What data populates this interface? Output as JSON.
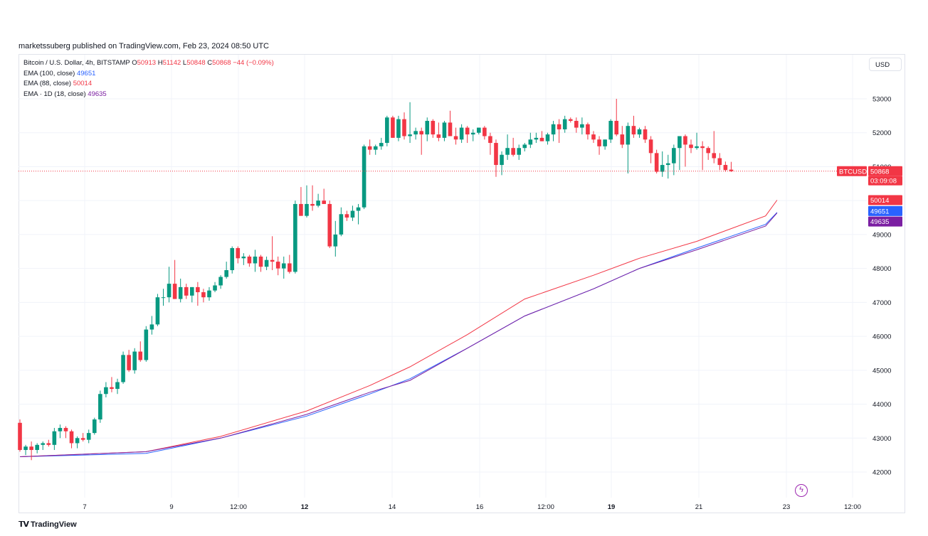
{
  "header": {
    "publisher_line": "marketssuberg published on TradingView.com, Feb 23, 2024 08:50 UTC"
  },
  "legend": {
    "symbol": "Bitcoin / U.S. Dollar, 4h, BITSTAMP",
    "o_label": "O",
    "o_value": "50913",
    "h_label": "H",
    "h_value": "51142",
    "l_label": "L",
    "l_value": "50848",
    "c_label": "C",
    "c_value": "50868",
    "change": "−44 (−0.09%)",
    "ema100_label": "EMA (100, close)",
    "ema100_value": "49651",
    "ema88_label": "EMA (88, close)",
    "ema88_value": "50014",
    "ema1d_label": "EMA · 1D (18, close)",
    "ema1d_value": "49635"
  },
  "currency_button": "USD",
  "price_tags": {
    "symbol_tag": "BTCUSD",
    "last_price": "50868",
    "countdown": "03:09:08",
    "ema88": "50014",
    "ema100": "49651",
    "ema1d": "49635"
  },
  "footer": {
    "brand": "TradingView"
  },
  "colors": {
    "up": "#089981",
    "down": "#f23645",
    "ema100": "#2962ff",
    "ema88": "#f23645",
    "ema1d": "#7b1fa2"
  },
  "chart_data": {
    "type": "candlestick",
    "interval": "4h",
    "y_ticks": [
      42000,
      43000,
      44000,
      45000,
      46000,
      47000,
      48000,
      49000,
      50000,
      51000,
      52000,
      53000
    ],
    "ylim": [
      41500,
      53700
    ],
    "x_ticks": [
      "7",
      "9",
      "12:00",
      "12",
      "14",
      "16",
      "12:00",
      "19",
      "21",
      "23",
      "12:00"
    ],
    "candles": [
      [
        43450,
        43550,
        42600,
        42650
      ],
      [
        42650,
        42800,
        42500,
        42750
      ],
      [
        42750,
        42900,
        42350,
        42650
      ],
      [
        42650,
        42850,
        42550,
        42800
      ],
      [
        42800,
        42900,
        42650,
        42850
      ],
      [
        42850,
        42950,
        42750,
        42800
      ],
      [
        42800,
        43300,
        42650,
        43200
      ],
      [
        43200,
        43400,
        43000,
        43300
      ],
      [
        43300,
        43350,
        43000,
        43200
      ],
      [
        43200,
        43250,
        42700,
        42850
      ],
      [
        42850,
        43050,
        42700,
        43000
      ],
      [
        43000,
        43150,
        42900,
        42950
      ],
      [
        42950,
        43250,
        42850,
        43150
      ],
      [
        43150,
        43600,
        43100,
        43550
      ],
      [
        43550,
        44400,
        43450,
        44300
      ],
      [
        44300,
        44650,
        44200,
        44500
      ],
      [
        44500,
        44800,
        44350,
        44450
      ],
      [
        44450,
        44750,
        44300,
        44650
      ],
      [
        44650,
        45550,
        44600,
        45450
      ],
      [
        45450,
        45600,
        44950,
        45000
      ],
      [
        45000,
        45650,
        44900,
        45550
      ],
      [
        45550,
        45850,
        45250,
        45300
      ],
      [
        45300,
        46300,
        45250,
        46200
      ],
      [
        46200,
        46600,
        46050,
        46350
      ],
      [
        46350,
        47250,
        46300,
        47150
      ],
      [
        47150,
        47400,
        46900,
        47150
      ],
      [
        47150,
        48050,
        47000,
        47550
      ],
      [
        47550,
        48250,
        47100,
        47100
      ],
      [
        47100,
        47700,
        47000,
        47450
      ],
      [
        47450,
        47550,
        47100,
        47200
      ],
      [
        47200,
        47450,
        47000,
        47450
      ],
      [
        47450,
        47600,
        46900,
        47300
      ],
      [
        47300,
        47400,
        47000,
        47150
      ],
      [
        47150,
        47450,
        47050,
        47350
      ],
      [
        47350,
        47600,
        47300,
        47500
      ],
      [
        47500,
        47800,
        47400,
        47750
      ],
      [
        47750,
        48200,
        47700,
        47950
      ],
      [
        47950,
        48650,
        47850,
        48600
      ],
      [
        48600,
        48650,
        48150,
        48300
      ],
      [
        48300,
        48450,
        48100,
        48350
      ],
      [
        48350,
        48400,
        48050,
        48150
      ],
      [
        48150,
        48550,
        47900,
        48350
      ],
      [
        48350,
        48400,
        47900,
        48050
      ],
      [
        48050,
        48350,
        47950,
        48250
      ],
      [
        48250,
        48950,
        47950,
        48200
      ],
      [
        48200,
        48350,
        47800,
        48000
      ],
      [
        48000,
        48350,
        47700,
        48150
      ],
      [
        48150,
        48400,
        47850,
        47900
      ],
      [
        47900,
        50000,
        47850,
        49900
      ],
      [
        49900,
        50400,
        49550,
        49550
      ],
      [
        49550,
        50450,
        49500,
        49900
      ],
      [
        49900,
        50450,
        49700,
        49850
      ],
      [
        49850,
        50200,
        49800,
        50000
      ],
      [
        50000,
        50350,
        49900,
        49900
      ],
      [
        49900,
        50000,
        48600,
        48650
      ],
      [
        48650,
        49400,
        48350,
        49000
      ],
      [
        49000,
        49800,
        48950,
        49600
      ],
      [
        49600,
        49700,
        49400,
        49500
      ],
      [
        49500,
        49850,
        49400,
        49700
      ],
      [
        49700,
        49900,
        49300,
        49800
      ],
      [
        49800,
        51650,
        49750,
        51600
      ],
      [
        51600,
        51800,
        51350,
        51500
      ],
      [
        51500,
        51650,
        51350,
        51600
      ],
      [
        51600,
        51850,
        51500,
        51700
      ],
      [
        51700,
        52500,
        51600,
        52450
      ],
      [
        52450,
        52500,
        51850,
        51850
      ],
      [
        51850,
        52500,
        51750,
        52400
      ],
      [
        52400,
        52600,
        51800,
        51900
      ],
      [
        51900,
        52900,
        51700,
        51950
      ],
      [
        51950,
        52150,
        51800,
        52050
      ],
      [
        52050,
        52150,
        51350,
        51950
      ],
      [
        51950,
        52450,
        51750,
        52350
      ],
      [
        52350,
        52400,
        51850,
        51950
      ],
      [
        51950,
        52300,
        51750,
        51850
      ],
      [
        51850,
        52350,
        51750,
        52300
      ],
      [
        52300,
        52650,
        51900,
        51900
      ],
      [
        51900,
        52150,
        51650,
        51800
      ],
      [
        51800,
        52250,
        51700,
        52150
      ],
      [
        52150,
        52200,
        51700,
        51950
      ],
      [
        51950,
        52100,
        51750,
        52000
      ],
      [
        52000,
        52150,
        51950,
        52150
      ],
      [
        52150,
        52200,
        51800,
        51900
      ],
      [
        51900,
        52000,
        51350,
        51700
      ],
      [
        51700,
        51800,
        50700,
        51050
      ],
      [
        51050,
        51450,
        50750,
        51350
      ],
      [
        51350,
        51950,
        51200,
        51550
      ],
      [
        51550,
        51850,
        51300,
        51350
      ],
      [
        51350,
        51650,
        51200,
        51550
      ],
      [
        51550,
        51700,
        51450,
        51650
      ],
      [
        51650,
        52000,
        51550,
        51800
      ],
      [
        51800,
        52000,
        51700,
        51850
      ],
      [
        51850,
        52050,
        51750,
        51750
      ],
      [
        51750,
        52000,
        51650,
        51950
      ],
      [
        51950,
        52350,
        51750,
        52250
      ],
      [
        52250,
        52400,
        51700,
        52100
      ],
      [
        52100,
        52500,
        52000,
        52400
      ],
      [
        52400,
        52450,
        52300,
        52350
      ],
      [
        52350,
        52450,
        52000,
        52150
      ],
      [
        52150,
        52450,
        51950,
        52250
      ],
      [
        52250,
        52300,
        51800,
        51950
      ],
      [
        51950,
        52050,
        51700,
        51800
      ],
      [
        51800,
        51900,
        51350,
        51600
      ],
      [
        51600,
        51800,
        51500,
        51800
      ],
      [
        51800,
        52400,
        51700,
        52350
      ],
      [
        52350,
        53000,
        51900,
        51950
      ],
      [
        51950,
        52200,
        51550,
        51650
      ],
      [
        51650,
        52300,
        50800,
        52200
      ],
      [
        52200,
        52500,
        51850,
        51950
      ],
      [
        51950,
        52150,
        51850,
        52100
      ],
      [
        52100,
        52200,
        51700,
        51800
      ],
      [
        51800,
        51900,
        51100,
        51400
      ],
      [
        51400,
        51500,
        50800,
        50850
      ],
      [
        50850,
        51450,
        50700,
        51050
      ],
      [
        51050,
        51350,
        50650,
        51100
      ],
      [
        51100,
        51650,
        50750,
        51550
      ],
      [
        51550,
        51900,
        50900,
        51900
      ],
      [
        51900,
        51950,
        51000,
        51650
      ],
      [
        51650,
        51800,
        51400,
        51550
      ],
      [
        51550,
        52000,
        51500,
        51600
      ],
      [
        51600,
        51750,
        50900,
        51550
      ],
      [
        51550,
        51600,
        51200,
        51400
      ],
      [
        51400,
        52050,
        51100,
        51250
      ],
      [
        51250,
        51400,
        50900,
        51050
      ],
      [
        51050,
        51150,
        50850,
        50900
      ],
      [
        50913,
        51142,
        50848,
        50868
      ]
    ],
    "series": [
      {
        "name": "EMA (100, close)",
        "values": [
          42450,
          42550,
          43000,
          43650,
          44300,
          44750,
          45650,
          46600,
          47400,
          48000,
          48600,
          49300,
          49651
        ]
      },
      {
        "name": "EMA (88, close)",
        "values": [
          42450,
          42600,
          43050,
          43800,
          44550,
          45100,
          46050,
          47100,
          47800,
          48300,
          48800,
          49550,
          50014
        ]
      },
      {
        "name": "EMA · 1D (18, close)",
        "values": [
          42450,
          42600,
          43000,
          43700,
          44350,
          44700,
          45650,
          46600,
          47400,
          48000,
          48550,
          49250,
          49635
        ]
      }
    ],
    "ema_x_index": [
      0,
      22,
      35,
      50,
      61,
      68,
      78,
      88,
      100,
      108,
      118,
      130,
      132
    ]
  }
}
